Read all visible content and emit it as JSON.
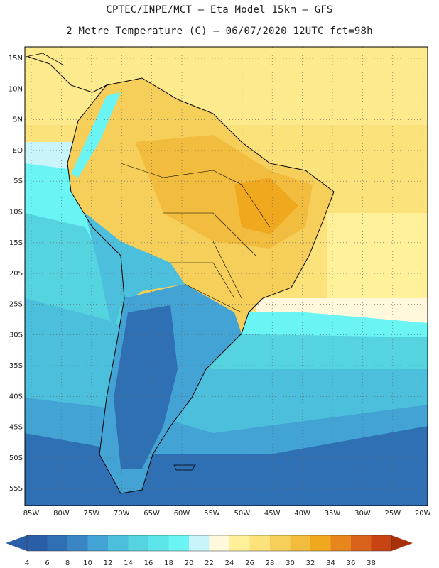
{
  "header": {
    "line1": "CPTEC/INPE/MCT –  Eta Model 15km – GFS",
    "line2": "2 Metre Temperature (C) – 06/07/2020 12UTC fct=98h"
  },
  "axes": {
    "lat_labels": [
      "15N",
      "10N",
      "5N",
      "EQ",
      "5S",
      "10S",
      "15S",
      "20S",
      "25S",
      "30S",
      "35S",
      "40S",
      "45S",
      "50S",
      "55S"
    ],
    "lon_labels": [
      "85W",
      "80W",
      "75W",
      "70W",
      "65W",
      "60W",
      "55W",
      "50W",
      "45W",
      "40W",
      "35W",
      "30W",
      "25W",
      "20W"
    ]
  },
  "legend": {
    "values": [
      "4",
      "6",
      "8",
      "10",
      "12",
      "14",
      "16",
      "18",
      "20",
      "22",
      "24",
      "26",
      "28",
      "30",
      "32",
      "34",
      "36",
      "38"
    ],
    "colors": [
      "#2a5fa8",
      "#2f6fb4",
      "#3a86c4",
      "#42a3d4",
      "#4cbfdc",
      "#55d4e0",
      "#5de6ea",
      "#6af4f4",
      "#c8f4fa",
      "#fff8dc",
      "#fff19a",
      "#fbe27a",
      "#f6cf5a",
      "#f2bd3e",
      "#f0a91e",
      "#e6861c",
      "#d8621a",
      "#c84412",
      "#a8300a"
    ]
  },
  "map": {
    "type": "filled-contour",
    "field": "2 Metre Temperature",
    "units": "C",
    "region": "South America"
  }
}
